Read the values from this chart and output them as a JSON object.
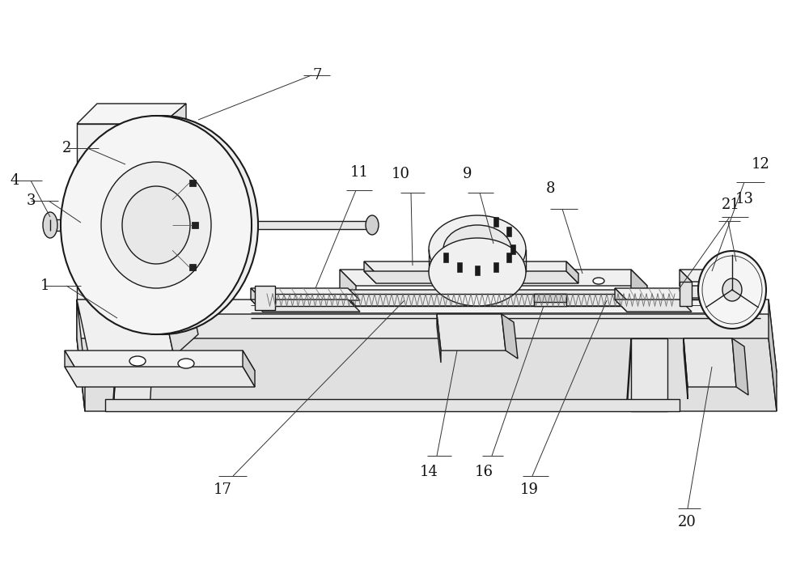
{
  "bg_color": "#ffffff",
  "lc": "#1a1a1a",
  "lw": 1.0,
  "tlw": 0.6,
  "thk": 1.5,
  "figsize": [
    10.0,
    6.93
  ],
  "dpi": 100,
  "font_size": 13
}
